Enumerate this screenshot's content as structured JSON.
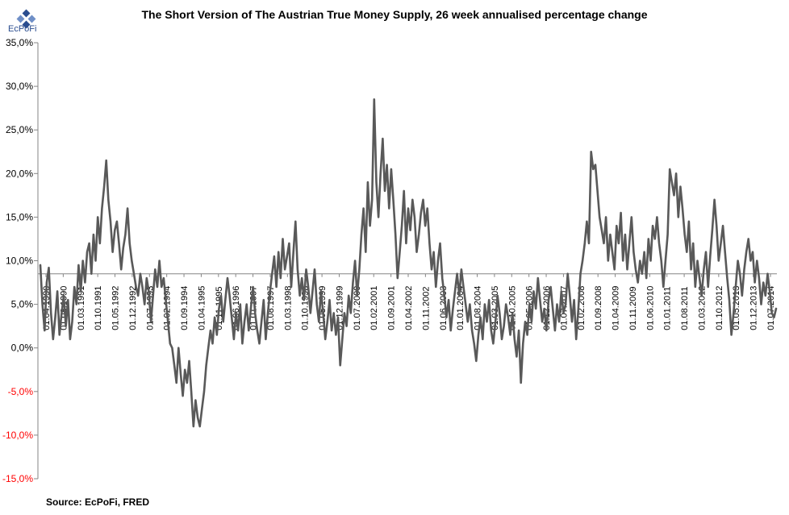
{
  "logo": {
    "text": "EcPoFi"
  },
  "source": "Source: EcPoFi,  FRED",
  "chart_data": {
    "type": "line",
    "title": "The Short Version of The Austrian True Money Supply, 26 week annualised percentage change",
    "xlabel": "",
    "ylabel": "",
    "ylim": [
      -15,
      35
    ],
    "y_step": 5,
    "y_tick_labels": [
      "-15,0%",
      "-10,0%",
      "-5,0%",
      "0,0%",
      "5,0%",
      "10,0%",
      "15,0%",
      "20,0%",
      "25,0%",
      "30,0%",
      "35,0%"
    ],
    "x_tick_labels": [
      "01.04.1990",
      "01.08.1990",
      "01.03.1991",
      "01.10.1991",
      "01.05.1992",
      "01.12.1992",
      "01.07.1993",
      "01.02.1994",
      "01.09.1994",
      "01.04.1995",
      "01.11.1995",
      "01.06.1996",
      "01.01.1997",
      "01.08.1997",
      "01.03.1998",
      "01.10.1998",
      "01.05.1999",
      "01.12.1999",
      "01.07.2000",
      "01.02.2001",
      "01.09.2001",
      "01.04.2002",
      "01.11.2002",
      "01.06.2003",
      "01.01.2004",
      "01.08.2004",
      "01.03.2005",
      "01.10.2005",
      "01.05.2006",
      "01.12.2006",
      "01.07.2007",
      "01.02.2008",
      "01.09.2008",
      "01.04.2009",
      "01.11.2009",
      "01.06.2010",
      "01.01.2011",
      "01.08.2011",
      "01.03.2012",
      "01.10.2012",
      "01.05.2013",
      "01.12.2013",
      "01.07.2014"
    ],
    "reference_line": 8.5,
    "grid": false,
    "series": [
      {
        "color": "#595959",
        "x_range": [
          "1990-01",
          "2014-10"
        ],
        "values": [
          9.5,
          5.0,
          2.0,
          7.5,
          9.2,
          4.0,
          1.0,
          3.5,
          6.5,
          1.5,
          4.0,
          6.0,
          2.5,
          5.5,
          1.0,
          3.0,
          7.0,
          5.0,
          9.5,
          6.5,
          10.0,
          7.5,
          11.0,
          12.0,
          8.5,
          13.0,
          10.0,
          15.0,
          12.0,
          16.0,
          18.5,
          21.5,
          17.0,
          14.5,
          11.0,
          13.5,
          14.5,
          12.0,
          9.0,
          11.5,
          13.0,
          16.0,
          12.0,
          10.0,
          8.5,
          7.0,
          6.0,
          8.5,
          7.0,
          5.0,
          8.0,
          6.5,
          3.0,
          6.0,
          9.0,
          7.0,
          10.0,
          7.0,
          8.0,
          5.5,
          3.0,
          0.5,
          0.0,
          -2.0,
          -4.0,
          0.0,
          -3.0,
          -5.5,
          -2.5,
          -4.0,
          -1.5,
          -5.0,
          -9.0,
          -6.0,
          -8.0,
          -9.0,
          -7.0,
          -5.0,
          -2.0,
          0.0,
          2.0,
          0.5,
          3.5,
          1.5,
          4.5,
          6.0,
          3.0,
          5.5,
          8.0,
          6.0,
          3.5,
          1.0,
          4.0,
          2.0,
          5.0,
          0.5,
          3.0,
          5.0,
          2.0,
          4.5,
          7.0,
          4.0,
          2.0,
          0.5,
          3.0,
          5.5,
          1.0,
          4.0,
          6.5,
          8.5,
          10.5,
          7.0,
          11.0,
          8.0,
          12.5,
          9.0,
          10.5,
          12.0,
          7.0,
          11.0,
          14.5,
          9.0,
          6.0,
          8.0,
          5.5,
          9.0,
          7.0,
          4.0,
          6.5,
          9.0,
          5.0,
          3.0,
          6.5,
          4.0,
          1.0,
          3.0,
          5.5,
          2.0,
          4.0,
          1.5,
          3.5,
          -2.0,
          1.0,
          4.0,
          2.5,
          6.0,
          4.0,
          7.5,
          10.0,
          6.0,
          9.0,
          13.0,
          16.0,
          11.0,
          19.0,
          14.0,
          17.0,
          28.5,
          19.0,
          15.0,
          20.0,
          24.0,
          18.0,
          21.0,
          16.0,
          20.5,
          17.0,
          13.0,
          8.0,
          11.0,
          14.0,
          18.0,
          12.0,
          16.0,
          13.5,
          17.0,
          15.0,
          11.0,
          13.0,
          15.5,
          17.0,
          14.0,
          16.0,
          12.0,
          9.0,
          11.0,
          7.0,
          10.0,
          12.0,
          8.0,
          6.0,
          3.5,
          5.5,
          2.0,
          4.5,
          6.5,
          8.5,
          6.0,
          9.0,
          7.0,
          5.0,
          3.0,
          5.0,
          2.0,
          0.5,
          -1.5,
          1.5,
          3.5,
          1.0,
          5.0,
          3.0,
          5.5,
          2.0,
          0.5,
          3.0,
          6.0,
          4.0,
          1.0,
          2.5,
          5.0,
          3.5,
          1.5,
          4.0,
          1.0,
          -1.0,
          2.0,
          -4.0,
          0.5,
          3.0,
          1.5,
          5.0,
          3.0,
          6.5,
          4.5,
          8.0,
          5.5,
          3.0,
          4.5,
          2.0,
          5.5,
          7.0,
          4.5,
          2.0,
          5.0,
          3.0,
          6.5,
          4.0,
          5.0,
          8.5,
          6.0,
          3.0,
          5.5,
          1.0,
          4.5,
          8.5,
          10.0,
          12.0,
          14.5,
          12.0,
          22.5,
          20.5,
          21.0,
          18.0,
          15.0,
          13.5,
          12.0,
          15.0,
          10.0,
          13.0,
          11.0,
          9.0,
          14.0,
          12.0,
          15.5,
          10.0,
          13.0,
          9.0,
          12.0,
          15.0,
          11.0,
          9.0,
          7.5,
          10.0,
          8.5,
          11.0,
          8.0,
          12.5,
          10.0,
          14.0,
          12.5,
          15.0,
          12.0,
          10.0,
          7.0,
          10.0,
          13.0,
          20.5,
          19.0,
          17.5,
          20.0,
          15.0,
          18.5,
          16.0,
          13.0,
          11.0,
          14.5,
          9.0,
          12.0,
          7.0,
          10.0,
          8.0,
          6.0,
          9.0,
          11.0,
          7.0,
          10.5,
          13.5,
          17.0,
          14.0,
          10.0,
          12.0,
          14.0,
          11.0,
          8.0,
          5.5,
          1.5,
          4.0,
          7.0,
          10.0,
          8.5,
          6.0,
          9.0,
          11.0,
          12.5,
          10.0,
          11.0,
          7.5,
          10.0,
          8.0,
          5.0,
          7.5,
          6.0,
          8.5,
          6.5,
          4.0,
          3.5,
          4.5
        ]
      }
    ]
  }
}
